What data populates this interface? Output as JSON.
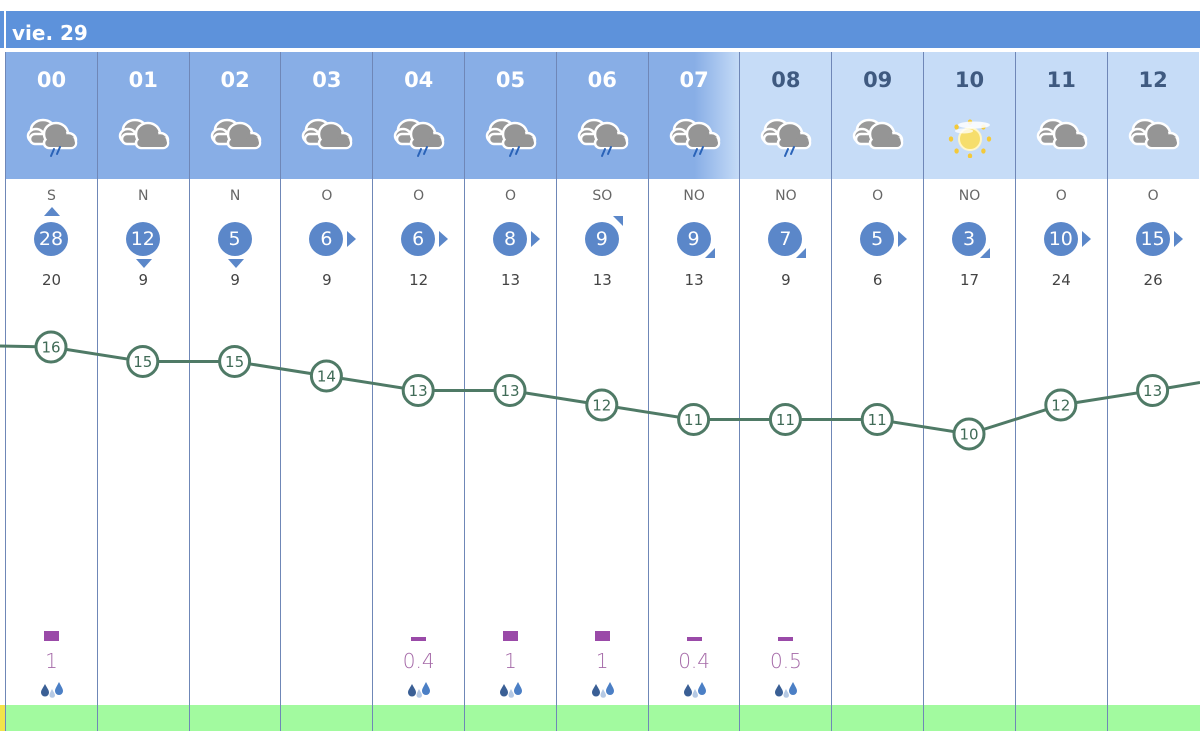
{
  "day_label": "vie. 29",
  "colors": {
    "day_band": "#5d92db",
    "header_dark": "#88aee6",
    "header_light": "#c6dcf7",
    "wind_circle": "#5b87c9",
    "temp_line": "#4f7a66",
    "precip_bar": "#9a4aa8",
    "precip_text": "#a56aa8",
    "bottom_strip": "#a2fa9f"
  },
  "hours": [
    {
      "hour": "00",
      "sky": "cloud-rain-icon",
      "wind_dir": "S",
      "wind_speed": "28",
      "wind_arrow": "up",
      "gust": "20",
      "temp": "16",
      "precip": "1",
      "precip_bar": "large",
      "drops": true
    },
    {
      "hour": "01",
      "sky": "cloud-icon",
      "wind_dir": "N",
      "wind_speed": "12",
      "wind_arrow": "down",
      "gust": "9",
      "temp": "15",
      "precip": "",
      "precip_bar": "none",
      "drops": false
    },
    {
      "hour": "02",
      "sky": "cloud-icon",
      "wind_dir": "N",
      "wind_speed": "5",
      "wind_arrow": "down",
      "gust": "9",
      "temp": "15",
      "precip": "",
      "precip_bar": "none",
      "drops": false
    },
    {
      "hour": "03",
      "sky": "cloud-icon",
      "wind_dir": "O",
      "wind_speed": "6",
      "wind_arrow": "right",
      "gust": "9",
      "temp": "14",
      "precip": "",
      "precip_bar": "none",
      "drops": false
    },
    {
      "hour": "04",
      "sky": "cloud-rain-icon",
      "wind_dir": "O",
      "wind_speed": "6",
      "wind_arrow": "right",
      "gust": "12",
      "temp": "13",
      "precip": "0.4",
      "precip_bar": "small",
      "drops": true
    },
    {
      "hour": "05",
      "sky": "cloud-rain-icon",
      "wind_dir": "O",
      "wind_speed": "8",
      "wind_arrow": "right",
      "gust": "13",
      "temp": "13",
      "precip": "1",
      "precip_bar": "large",
      "drops": true
    },
    {
      "hour": "06",
      "sky": "cloud-rain-icon",
      "wind_dir": "SO",
      "wind_speed": "9",
      "wind_arrow": "up-right",
      "gust": "13",
      "temp": "12",
      "precip": "1",
      "precip_bar": "large",
      "drops": true
    },
    {
      "hour": "07",
      "sky": "cloud-rain-icon",
      "wind_dir": "NO",
      "wind_speed": "9",
      "wind_arrow": "down-right",
      "gust": "13",
      "temp": "11",
      "precip": "0.4",
      "precip_bar": "small",
      "drops": true
    },
    {
      "hour": "08",
      "sky": "cloud-rain-icon",
      "wind_dir": "NO",
      "wind_speed": "7",
      "wind_arrow": "down-right",
      "gust": "9",
      "temp": "11",
      "precip": "0.5",
      "precip_bar": "small",
      "drops": true
    },
    {
      "hour": "09",
      "sky": "cloud-icon",
      "wind_dir": "O",
      "wind_speed": "5",
      "wind_arrow": "right",
      "gust": "6",
      "temp": "11",
      "precip": "",
      "precip_bar": "none",
      "drops": false
    },
    {
      "hour": "10",
      "sky": "sun-haze-icon",
      "wind_dir": "NO",
      "wind_speed": "3",
      "wind_arrow": "down-right",
      "gust": "17",
      "temp": "10",
      "precip": "",
      "precip_bar": "none",
      "drops": false
    },
    {
      "hour": "11",
      "sky": "cloud-icon",
      "wind_dir": "O",
      "wind_speed": "10",
      "wind_arrow": "right",
      "gust": "24",
      "temp": "12",
      "precip": "",
      "precip_bar": "none",
      "drops": false
    },
    {
      "hour": "12",
      "sky": "cloud-icon",
      "wind_dir": "O",
      "wind_speed": "15",
      "wind_arrow": "right",
      "gust": "26",
      "temp": "13",
      "precip": "",
      "precip_bar": "none",
      "drops": false
    }
  ]
}
